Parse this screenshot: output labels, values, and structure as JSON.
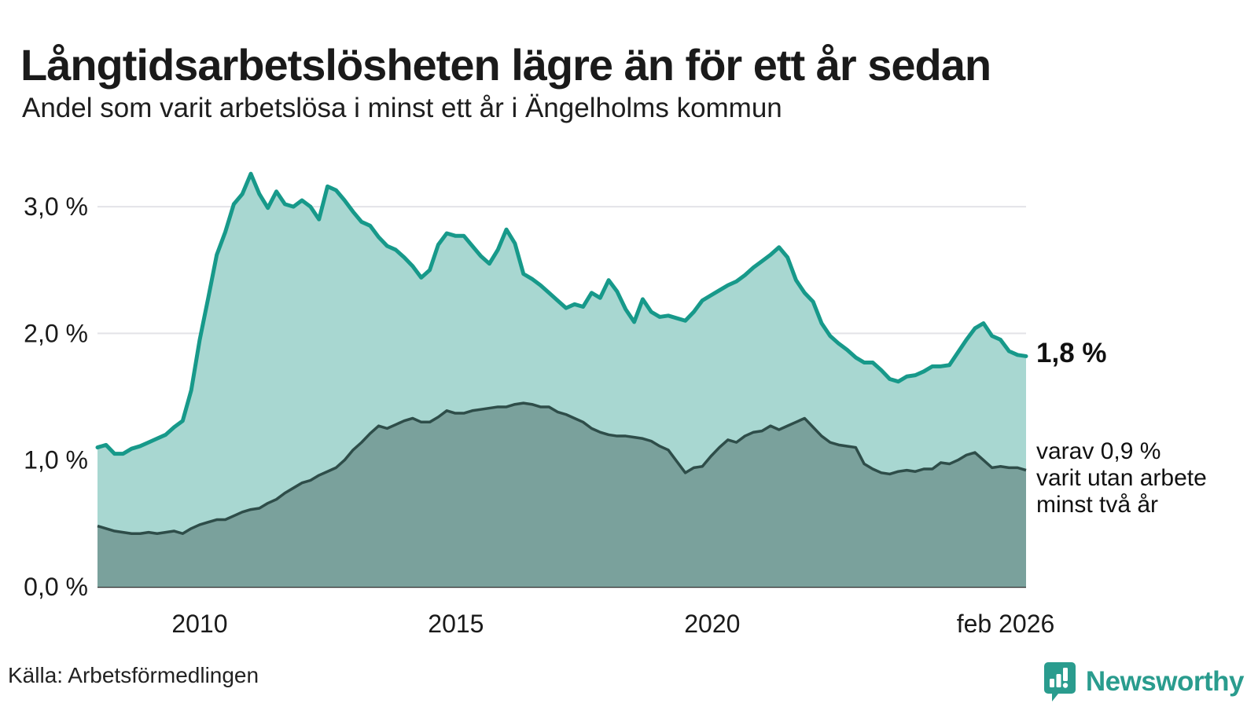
{
  "header": {
    "title": "Långtidsarbetslösheten lägre än för ett år sedan",
    "subtitle": "Andel som varit arbetslösa i minst ett år i Ängelholms kommun"
  },
  "annotations": {
    "latest_total": "1,8 %",
    "subset_note_lines": [
      "varav 0,9 %",
      "varit utan arbete",
      "minst två år"
    ]
  },
  "footer": {
    "source": "Källa: Arbetsförmedlingen",
    "brand": "Newsworthy"
  },
  "colors": {
    "teal_line": "#17998a",
    "teal_fill": "#a8d7d1",
    "dark_line": "#2e4d49",
    "dark_fill": "#7aa19c",
    "gridline": "#e3e3e8",
    "baseline": "#2e2e2e",
    "text": "#1a1a1a",
    "brand_teal": "#2a9c8e"
  },
  "chart_data": {
    "type": "area",
    "title": "Långtidsarbetslösheten lägre än för ett år sedan",
    "subtitle": "Andel som varit arbetslösa i minst ett år i Ängelholms kommun",
    "x_range": [
      "jan 2008",
      "feb 2026"
    ],
    "ylim": [
      0,
      3.4
    ],
    "grid": true,
    "y_ticks": [
      {
        "label": "3,0 %",
        "value": 3.0
      },
      {
        "label": "2,0 %",
        "value": 2.0
      },
      {
        "label": "1,0 %",
        "value": 1.0
      },
      {
        "label": "0,0 %",
        "value": 0.0
      }
    ],
    "x_ticks": [
      {
        "label": "2010",
        "pos": 0.11
      },
      {
        "label": "2015",
        "pos": 0.386
      },
      {
        "label": "2020",
        "pos": 0.662
      },
      {
        "label": "feb 2026",
        "pos": 0.978
      }
    ],
    "series": [
      {
        "name": "Andel arbetslösa minst ett år",
        "latest_label": "1,8 %",
        "values": [
          1.1,
          1.12,
          1.05,
          1.05,
          1.09,
          1.11,
          1.14,
          1.17,
          1.2,
          1.26,
          1.31,
          1.55,
          1.95,
          2.28,
          2.62,
          2.8,
          3.02,
          3.1,
          3.26,
          3.1,
          2.99,
          3.12,
          3.02,
          3.0,
          3.05,
          3.0,
          2.9,
          3.16,
          3.13,
          3.05,
          2.96,
          2.88,
          2.85,
          2.76,
          2.69,
          2.66,
          2.6,
          2.53,
          2.44,
          2.5,
          2.7,
          2.79,
          2.77,
          2.77,
          2.69,
          2.61,
          2.55,
          2.66,
          2.82,
          2.71,
          2.47,
          2.43,
          2.38,
          2.32,
          2.26,
          2.2,
          2.23,
          2.21,
          2.32,
          2.28,
          2.42,
          2.33,
          2.19,
          2.09,
          2.27,
          2.17,
          2.13,
          2.14,
          2.12,
          2.1,
          2.17,
          2.26,
          2.3,
          2.34,
          2.38,
          2.41,
          2.46,
          2.52,
          2.57,
          2.62,
          2.68,
          2.6,
          2.42,
          2.32,
          2.25,
          2.08,
          1.98,
          1.92,
          1.87,
          1.81,
          1.77,
          1.77,
          1.71,
          1.64,
          1.62,
          1.66,
          1.67,
          1.7,
          1.74,
          1.74,
          1.75,
          1.85,
          1.95,
          2.04,
          2.08,
          1.98,
          1.95,
          1.86,
          1.83,
          1.82
        ]
      },
      {
        "name": "varav utan arbete minst två år",
        "latest_label": "0,9 %",
        "values": [
          0.48,
          0.46,
          0.44,
          0.43,
          0.42,
          0.42,
          0.43,
          0.42,
          0.43,
          0.44,
          0.42,
          0.46,
          0.49,
          0.51,
          0.53,
          0.53,
          0.56,
          0.59,
          0.61,
          0.62,
          0.66,
          0.69,
          0.74,
          0.78,
          0.82,
          0.84,
          0.88,
          0.91,
          0.94,
          1.0,
          1.08,
          1.14,
          1.21,
          1.27,
          1.25,
          1.28,
          1.31,
          1.33,
          1.3,
          1.3,
          1.34,
          1.39,
          1.37,
          1.37,
          1.39,
          1.4,
          1.41,
          1.42,
          1.42,
          1.44,
          1.45,
          1.44,
          1.42,
          1.42,
          1.38,
          1.36,
          1.33,
          1.3,
          1.25,
          1.22,
          1.2,
          1.19,
          1.19,
          1.18,
          1.17,
          1.15,
          1.11,
          1.08,
          0.99,
          0.9,
          0.94,
          0.95,
          1.03,
          1.1,
          1.16,
          1.14,
          1.19,
          1.22,
          1.23,
          1.27,
          1.24,
          1.27,
          1.3,
          1.33,
          1.26,
          1.19,
          1.14,
          1.12,
          1.11,
          1.1,
          0.97,
          0.93,
          0.9,
          0.89,
          0.91,
          0.92,
          0.91,
          0.93,
          0.93,
          0.98,
          0.97,
          1.0,
          1.04,
          1.06,
          1.0,
          0.94,
          0.95,
          0.94,
          0.94,
          0.92
        ]
      }
    ]
  }
}
